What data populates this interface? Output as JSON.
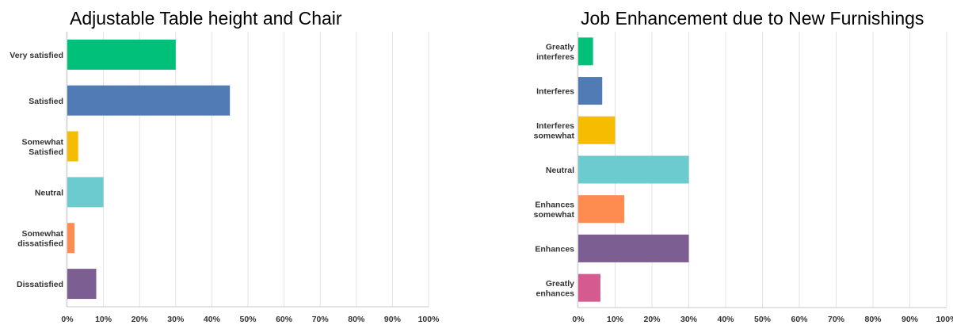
{
  "chart_data": [
    {
      "type": "bar",
      "orientation": "horizontal",
      "title": "Adjustable Table height and Chair",
      "categories": [
        [
          "Very satisfied"
        ],
        [
          "Satisfied"
        ],
        [
          "Somewhat",
          "Satisfied"
        ],
        [
          "Neutral"
        ],
        [
          "Somewhat",
          "dissatisfied"
        ],
        [
          "Dissatisfied"
        ]
      ],
      "values": [
        30,
        45,
        3,
        10,
        2,
        8
      ],
      "colors": [
        "#00c07a",
        "#507bb5",
        "#f5bc00",
        "#6ccbcf",
        "#fe8c51",
        "#7d5e92"
      ],
      "xlim": [
        0,
        100
      ],
      "ticks": [
        "0%",
        "10%",
        "20%",
        "30%",
        "40%",
        "50%",
        "60%",
        "70%",
        "80%",
        "90%",
        "100%"
      ],
      "grid": true,
      "unit": "%"
    },
    {
      "type": "bar",
      "orientation": "horizontal",
      "title": "Job Enhancement due to New Furnishings",
      "categories": [
        [
          "Greatly",
          "interferes"
        ],
        [
          "Interferes"
        ],
        [
          "Interferes",
          "somewhat"
        ],
        [
          "Neutral"
        ],
        [
          "Enhances",
          "somewhat"
        ],
        [
          "Enhances"
        ],
        [
          "Greatly",
          "enhances"
        ]
      ],
      "values": [
        4,
        6.5,
        10,
        30,
        12.5,
        30,
        6
      ],
      "colors": [
        "#00c07a",
        "#507bb5",
        "#f5bc00",
        "#6ccbcf",
        "#fe8c51",
        "#7d5e92",
        "#d55a8d"
      ],
      "xlim": [
        0,
        100
      ],
      "ticks": [
        "0%",
        "10%",
        "20%",
        "30%",
        "40%",
        "50%",
        "60%",
        "70%",
        "80%",
        "90%",
        "100%"
      ],
      "grid": true,
      "unit": "%"
    }
  ]
}
